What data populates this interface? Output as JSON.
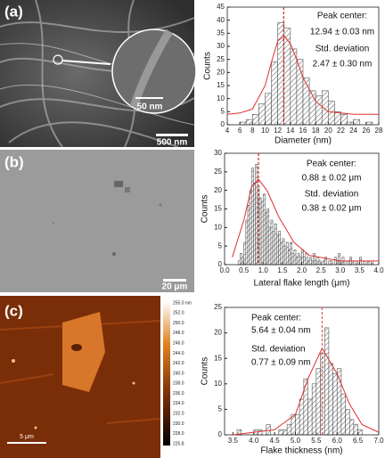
{
  "images": [
    {
      "label": "(a)",
      "scale_bar": "500 nm",
      "inset_scale_bar": "50 nm"
    },
    {
      "label": "(b)",
      "scale_bar": "20 μm"
    },
    {
      "label": "(c)",
      "scale_bar": "5 μm",
      "colorbar_labels": [
        "255.0 nm",
        "252.0",
        "250.0",
        "248.0",
        "246.0",
        "244.0",
        "242.0",
        "240.0",
        "238.0",
        "236.0",
        "234.0",
        "232.0",
        "230.0",
        "228.0",
        "225.8"
      ]
    }
  ],
  "chart_data": [
    {
      "type": "histogram",
      "xlabel": "Diameter (nm)",
      "ylabel": "Counts",
      "color": "#555555",
      "annotations": [
        "Peak center:",
        "12.94 ± 0.03 nm",
        "Std. deviation",
        "2.47 ± 0.30 nm"
      ],
      "bins": [
        6,
        7,
        8,
        9,
        10,
        11,
        12,
        13,
        14,
        15,
        16,
        17,
        18,
        19,
        20,
        21,
        22,
        23,
        24,
        25,
        26,
        27
      ],
      "values": [
        1,
        2,
        4,
        8,
        12,
        24,
        39,
        37,
        29,
        25,
        18,
        13,
        11,
        13,
        9,
        5,
        4,
        1,
        2,
        0,
        1
      ],
      "xlim": [
        4,
        28
      ],
      "xticks": [
        4,
        6,
        8,
        10,
        12,
        14,
        16,
        18,
        20,
        22,
        24,
        26,
        28
      ],
      "ylim": [
        0,
        45
      ],
      "yticks": [
        0,
        5,
        10,
        15,
        20,
        25,
        30,
        35,
        40,
        45
      ],
      "marker": 12.94,
      "marker_color": "#d62020",
      "fit": {
        "color": "#e03030",
        "x": [
          4,
          6,
          8,
          10,
          11,
          12,
          13,
          14,
          15,
          16,
          18,
          20,
          24,
          28
        ],
        "y": [
          4,
          4.5,
          6,
          15,
          24,
          32,
          34,
          31,
          25,
          18,
          9,
          5,
          4,
          4
        ]
      }
    },
    {
      "type": "histogram",
      "xlabel": "Lateral flake length (μm)",
      "ylabel": "Counts",
      "color": "#555555",
      "annotations": [
        "Peak center:",
        "0.88 ± 0.02 μm",
        "Std. deviation",
        "0.38 ± 0.02 μm"
      ],
      "bins": [
        0.35,
        0.4,
        0.45,
        0.5,
        0.55,
        0.6,
        0.65,
        0.7,
        0.75,
        0.8,
        0.85,
        0.9,
        0.95,
        1,
        1.05,
        1.1,
        1.15,
        1.2,
        1.25,
        1.3,
        1.35,
        1.4,
        1.45,
        1.5,
        1.55,
        1.6,
        1.65,
        1.7,
        1.75,
        1.8,
        1.85,
        1.9,
        1.95,
        2,
        2.05,
        2.1,
        2.15,
        2.2,
        2.25,
        2.3,
        2.35,
        2.4,
        2.45,
        2.5,
        2.55,
        2.6,
        2.65,
        2.7,
        2.75,
        2.8,
        2.85,
        2.9,
        2.95,
        3,
        3.05,
        3.1,
        3.15,
        3.2,
        3.25,
        3.3,
        3.35,
        3.4,
        3.45,
        3.5,
        3.55,
        3.6,
        3.65,
        3.7,
        3.75,
        3.8,
        3.85
      ],
      "values": [
        1,
        3,
        2,
        6,
        12,
        16,
        20,
        26,
        22,
        27,
        21,
        18,
        17,
        19,
        14,
        15,
        10,
        12,
        9,
        11,
        8,
        9,
        6,
        7,
        5,
        6,
        4,
        6,
        3,
        4,
        2,
        3,
        2,
        4,
        2,
        3,
        1,
        2,
        1,
        3,
        1,
        2,
        1,
        0,
        1,
        2,
        0,
        1,
        1,
        0,
        2,
        1,
        3,
        1,
        2,
        1,
        0,
        1,
        2,
        1,
        0,
        1,
        0,
        2,
        0,
        1,
        0,
        1,
        0,
        1
      ],
      "xlim": [
        0,
        4
      ],
      "xticks": [
        {
          "value": 0,
          "label": "0.0"
        },
        0.5,
        {
          "value": 1,
          "label": "1.0"
        },
        1.5,
        {
          "value": 2,
          "label": "2.0"
        },
        2.5,
        {
          "value": 3,
          "label": "3.0"
        },
        3.5,
        {
          "value": 4,
          "label": "4.0"
        }
      ],
      "ylim": [
        0,
        30
      ],
      "yticks": [
        0,
        5,
        10,
        15,
        20,
        25,
        30
      ],
      "marker": 0.88,
      "marker_color": "#d62020",
      "fit": {
        "color": "#e03030",
        "x": [
          0.2,
          0.5,
          0.7,
          0.88,
          1.1,
          1.4,
          1.8,
          2.2,
          3,
          4
        ],
        "y": [
          2,
          12,
          21,
          23,
          20,
          13,
          6,
          2.5,
          1,
          1
        ]
      }
    },
    {
      "type": "histogram",
      "xlabel": "Flake thickness (nm)",
      "ylabel": "Counts",
      "color": "#555555",
      "annotations": [
        "Peak center:",
        "5.64 ± 0.04 nm",
        "Std. deviation",
        "0.77 ± 0.09 nm"
      ],
      "bins": [
        3.6,
        3.7,
        3.8,
        3.9,
        4,
        4.1,
        4.2,
        4.3,
        4.4,
        4.5,
        4.6,
        4.7,
        4.8,
        4.9,
        5,
        5.1,
        5.2,
        5.3,
        5.4,
        5.5,
        5.6,
        5.7,
        5.8,
        5.9,
        6,
        6.1,
        6.2,
        6.3,
        6.4,
        6.5,
        6.6
      ],
      "values": [
        1,
        0,
        0,
        0,
        1,
        1,
        0,
        2,
        0,
        0,
        1,
        1,
        2,
        4,
        4,
        7,
        11,
        7,
        10,
        13,
        16,
        21,
        14,
        12,
        13,
        8,
        5,
        3,
        2,
        1
      ],
      "xlim": [
        3.3,
        7
      ],
      "xticks": [
        3.5,
        {
          "value": 4,
          "label": "4.0"
        },
        4.5,
        {
          "value": 5,
          "label": "5.0"
        },
        5.5,
        {
          "value": 6,
          "label": "6.0"
        },
        6.5,
        {
          "value": 7,
          "label": "7.0"
        }
      ],
      "ylim": [
        0,
        25
      ],
      "yticks": [
        0,
        5,
        10,
        15,
        20,
        25
      ],
      "marker": 5.64,
      "marker_color": "#e06060",
      "fit": {
        "color": "#e03030",
        "x": [
          3.5,
          4.5,
          5,
          5.3,
          5.64,
          6,
          6.3,
          6.6,
          7
        ],
        "y": [
          0,
          1,
          4,
          11,
          17,
          12,
          6,
          2,
          0.5
        ]
      }
    }
  ]
}
